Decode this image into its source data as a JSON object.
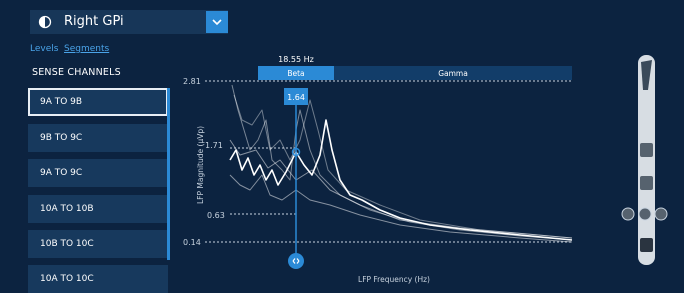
{
  "dropdown": {
    "label": "Right GPi"
  },
  "tabs": [
    "Levels",
    "Segments"
  ],
  "section_title": "SENSE CHANNELS",
  "channels": [
    "9A TO 9B",
    "9B TO 9C",
    "9A TO 9C",
    "10A TO 10B",
    "10B TO 10C",
    "10A TO 10C"
  ],
  "chart": {
    "cursor_frequency": "18.55 Hz",
    "bands": [
      "Beta",
      "Gamma"
    ],
    "cursor_value": "1.64",
    "y_labels": [
      "2.81",
      "1.71",
      "0.63",
      "0.14"
    ],
    "y_axis_title": "LFP Magnitude (µVp)",
    "x_axis_title": "LFP Frequency (Hz)"
  }
}
